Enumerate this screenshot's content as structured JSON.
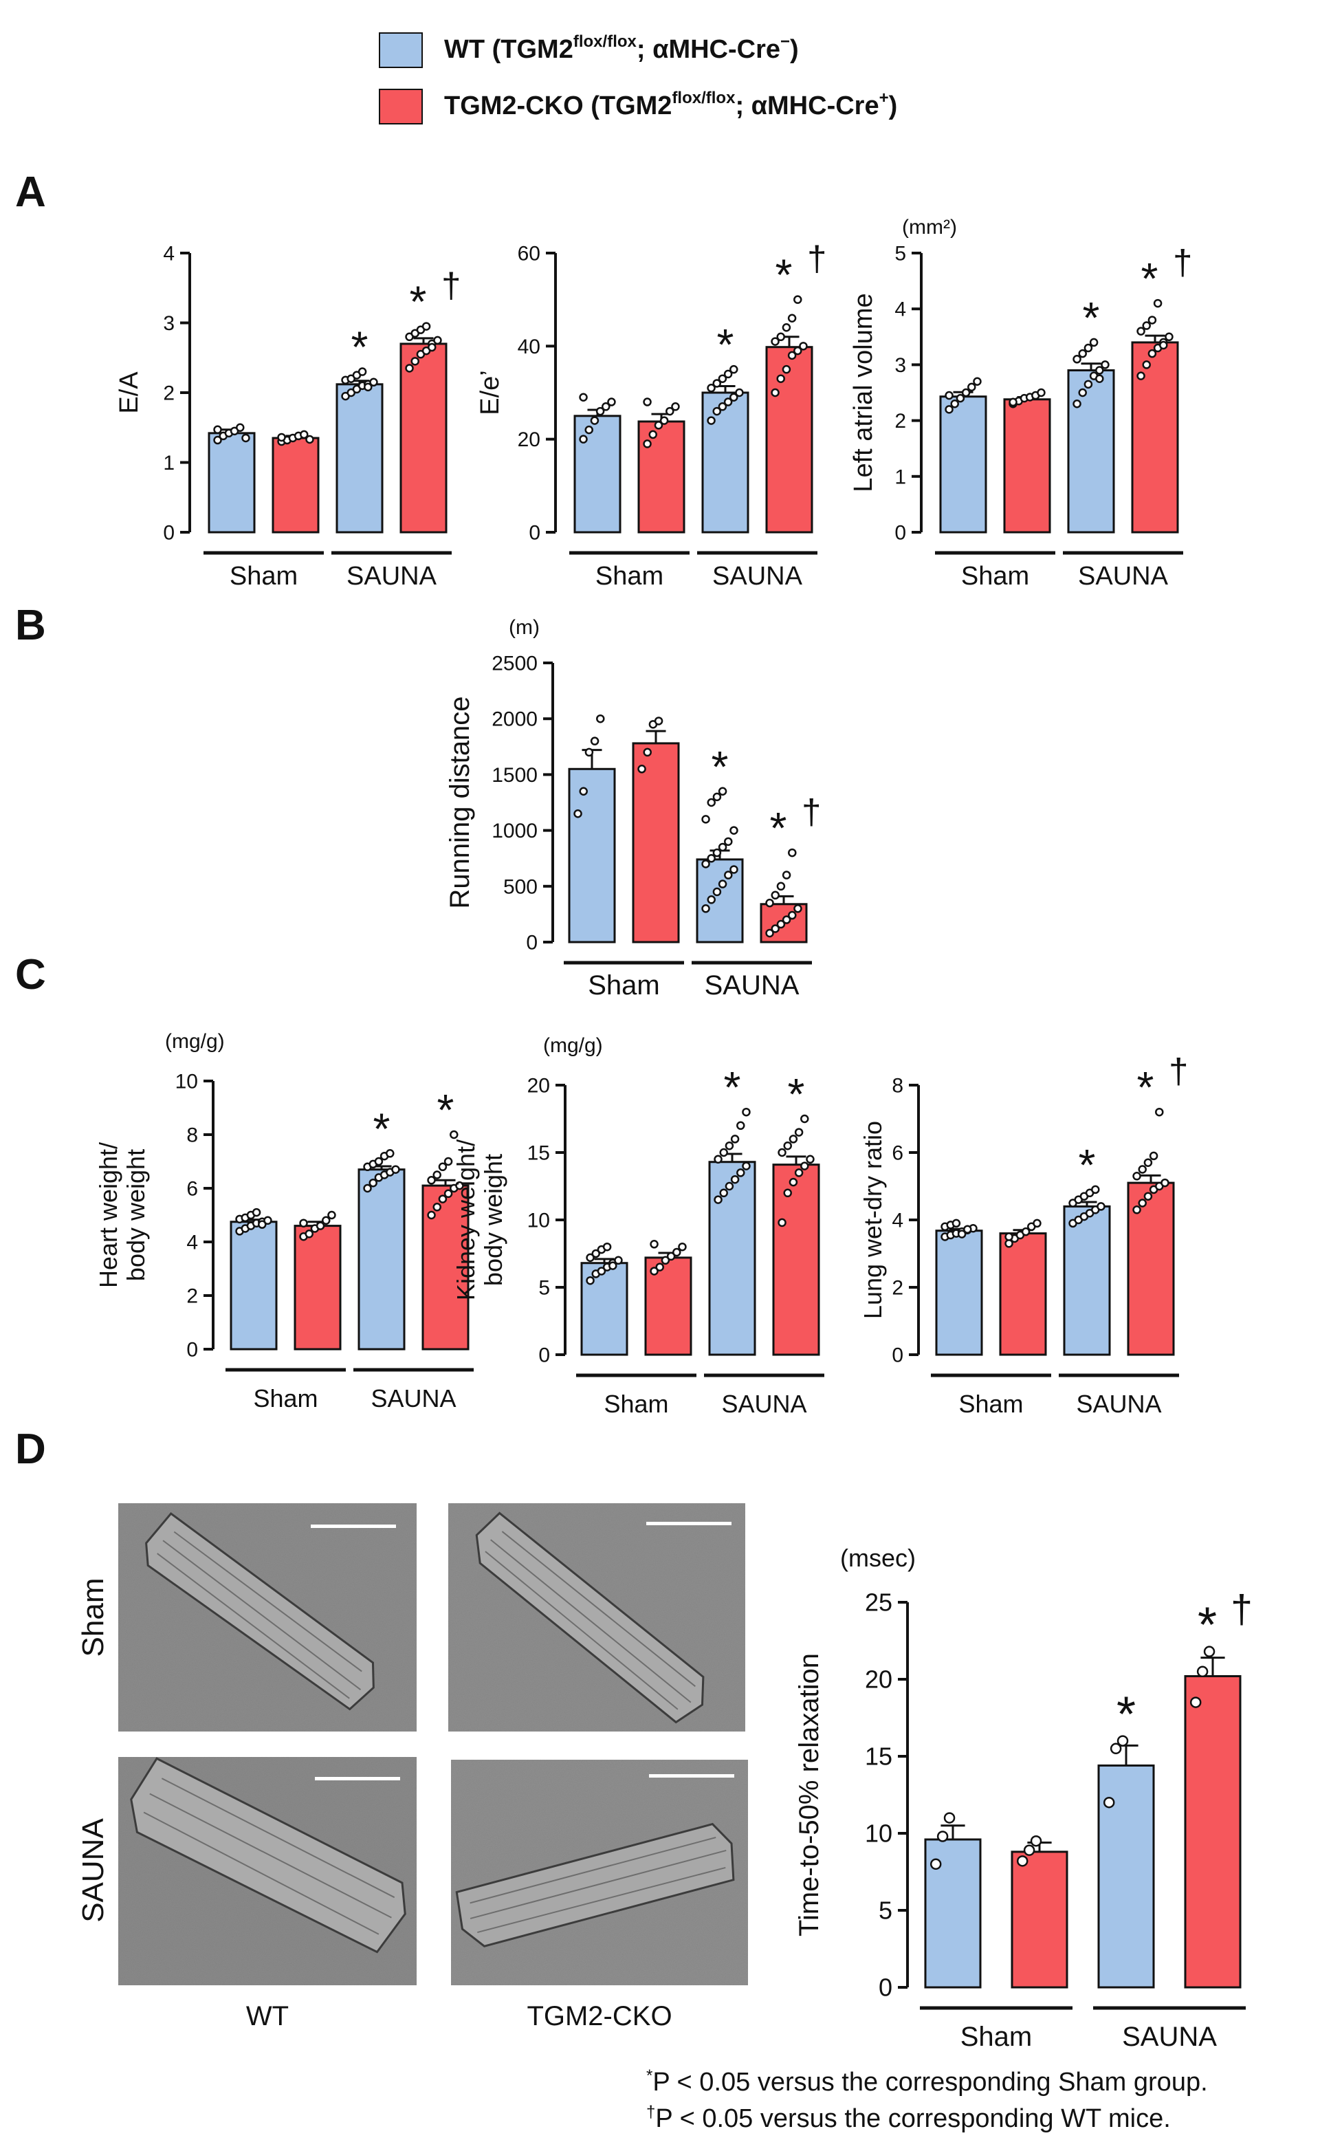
{
  "colors": {
    "wt": "#a4c4e8",
    "cko": "#f6575c",
    "ink": "#111111",
    "micrograph_bg": "#8e8e8e",
    "cell": "#b0b0b0",
    "scalebar": "#ffffff"
  },
  "legend": [
    {
      "series": "wt",
      "label": "WT (TGM2",
      "sup": "flox/flox",
      "label_mid": "; αMHC-Cre",
      "sup2": "−",
      "label_end": ")"
    },
    {
      "series": "cko",
      "label": "TGM2-CKO (TGM2",
      "sup": "flox/flox",
      "label_mid": "; αMHC-Cre",
      "sup2": "+",
      "label_end": ")"
    }
  ],
  "panels": [
    {
      "letter": "A"
    },
    {
      "letter": "B"
    },
    {
      "letter": "C"
    },
    {
      "letter": "D"
    }
  ],
  "chart_data": [
    {
      "id": "a1",
      "panel": "A",
      "type": "bar",
      "title": "",
      "ylabel": [
        "E/A"
      ],
      "unit": "",
      "ylim": [
        0,
        4
      ],
      "yticks": [
        "0",
        "1",
        "2",
        "3",
        "4"
      ],
      "groups": [
        "Sham",
        "SAUNA"
      ],
      "series": [
        "WT",
        "TGM2-CKO"
      ],
      "bars": [
        {
          "series": "WT",
          "group": "Sham",
          "value": 1.42,
          "sem": 0.05,
          "marks": ""
        },
        {
          "series": "TGM2-CKO",
          "group": "Sham",
          "value": 1.35,
          "sem": 0.03,
          "marks": ""
        },
        {
          "series": "WT",
          "group": "SAUNA",
          "value": 2.12,
          "sem": 0.05,
          "marks": "*"
        },
        {
          "series": "TGM2-CKO",
          "group": "SAUNA",
          "value": 2.7,
          "sem": 0.08,
          "marks": "*†"
        }
      ],
      "points": [
        [
          1.32,
          1.38,
          1.42,
          1.45,
          1.5,
          1.35,
          1.47
        ],
        [
          1.3,
          1.32,
          1.35,
          1.38,
          1.4,
          1.33,
          1.36
        ],
        [
          1.95,
          2.0,
          2.05,
          2.1,
          2.12,
          2.15,
          2.18,
          2.2,
          2.25,
          2.3,
          2.08
        ],
        [
          2.35,
          2.45,
          2.55,
          2.6,
          2.7,
          2.75,
          2.8,
          2.85,
          2.9,
          2.95,
          2.65
        ]
      ]
    },
    {
      "id": "a2",
      "panel": "A",
      "type": "bar",
      "title": "",
      "ylabel": [
        "E/e’"
      ],
      "unit": "",
      "ylim": [
        0,
        60
      ],
      "yticks": [
        "0",
        "20",
        "40",
        "60"
      ],
      "groups": [
        "Sham",
        "SAUNA"
      ],
      "series": [
        "WT",
        "TGM2-CKO"
      ],
      "bars": [
        {
          "series": "WT",
          "group": "Sham",
          "value": 25,
          "sem": 1.3,
          "marks": ""
        },
        {
          "series": "TGM2-CKO",
          "group": "Sham",
          "value": 23.8,
          "sem": 1.6,
          "marks": ""
        },
        {
          "series": "WT",
          "group": "SAUNA",
          "value": 30,
          "sem": 1.4,
          "marks": "*"
        },
        {
          "series": "TGM2-CKO",
          "group": "SAUNA",
          "value": 39.8,
          "sem": 2.2,
          "marks": "*†"
        }
      ],
      "points": [
        [
          20,
          22,
          24,
          26,
          27,
          28,
          29
        ],
        [
          19,
          21,
          23,
          24,
          26,
          27,
          28
        ],
        [
          24,
          26,
          27,
          28,
          29,
          30,
          31,
          32,
          33,
          34,
          35
        ],
        [
          30,
          33,
          35,
          38,
          39,
          40,
          41,
          42,
          44,
          46,
          50
        ]
      ]
    },
    {
      "id": "a3",
      "panel": "A",
      "type": "bar",
      "title": "",
      "ylabel": [
        "Left atrial volume"
      ],
      "unit": "(mm²)",
      "ylim": [
        0,
        5
      ],
      "yticks": [
        "0",
        "1",
        "2",
        "3",
        "4",
        "5"
      ],
      "groups": [
        "Sham",
        "SAUNA"
      ],
      "series": [
        "WT",
        "TGM2-CKO"
      ],
      "bars": [
        {
          "series": "WT",
          "group": "Sham",
          "value": 2.43,
          "sem": 0.08,
          "marks": ""
        },
        {
          "series": "TGM2-CKO",
          "group": "Sham",
          "value": 2.38,
          "sem": 0.04,
          "marks": ""
        },
        {
          "series": "WT",
          "group": "SAUNA",
          "value": 2.9,
          "sem": 0.12,
          "marks": "*"
        },
        {
          "series": "TGM2-CKO",
          "group": "SAUNA",
          "value": 3.4,
          "sem": 0.12,
          "marks": "*†"
        }
      ],
      "points": [
        [
          2.2,
          2.3,
          2.4,
          2.5,
          2.6,
          2.7,
          2.45
        ],
        [
          2.3,
          2.35,
          2.4,
          2.42,
          2.45,
          2.5,
          2.33
        ],
        [
          2.3,
          2.5,
          2.65,
          2.8,
          2.9,
          3.0,
          3.1,
          3.2,
          3.3,
          3.4,
          2.75
        ],
        [
          2.8,
          3.0,
          3.2,
          3.3,
          3.4,
          3.5,
          3.6,
          3.7,
          3.8,
          4.1,
          3.35
        ]
      ]
    },
    {
      "id": "b1",
      "panel": "B",
      "type": "bar",
      "title": "",
      "ylabel": [
        "Running distance"
      ],
      "unit": "(m)",
      "ylim": [
        0,
        2500
      ],
      "yticks": [
        "0",
        "500",
        "1000",
        "1500",
        "2000",
        "2500"
      ],
      "groups": [
        "Sham",
        "SAUNA"
      ],
      "series": [
        "WT",
        "TGM2-CKO"
      ],
      "bars": [
        {
          "series": "WT",
          "group": "Sham",
          "value": 1550,
          "sem": 170,
          "marks": ""
        },
        {
          "series": "TGM2-CKO",
          "group": "Sham",
          "value": 1780,
          "sem": 110,
          "marks": ""
        },
        {
          "series": "WT",
          "group": "SAUNA",
          "value": 740,
          "sem": 80,
          "marks": "*"
        },
        {
          "series": "TGM2-CKO",
          "group": "SAUNA",
          "value": 340,
          "sem": 70,
          "marks": "*†"
        }
      ],
      "points": [
        [
          1150,
          1350,
          1700,
          1800,
          2000
        ],
        [
          1550,
          1700,
          1950,
          1980
        ],
        [
          300,
          380,
          450,
          520,
          600,
          650,
          700,
          750,
          800,
          850,
          900,
          1000,
          1100,
          1250,
          1300,
          1350
        ],
        [
          80,
          120,
          160,
          200,
          240,
          300,
          350,
          420,
          500,
          600,
          800
        ]
      ]
    },
    {
      "id": "c1",
      "panel": "C",
      "type": "bar",
      "title": "",
      "ylabel": [
        "Heart weight/",
        "body weight"
      ],
      "unit": "(mg/g)",
      "ylim": [
        0,
        10
      ],
      "yticks": [
        "0",
        "2",
        "4",
        "6",
        "8",
        "10"
      ],
      "groups": [
        "Sham",
        "SAUNA"
      ],
      "series": [
        "WT",
        "TGM2-CKO"
      ],
      "bars": [
        {
          "series": "WT",
          "group": "Sham",
          "value": 4.75,
          "sem": 0.08,
          "marks": ""
        },
        {
          "series": "TGM2-CKO",
          "group": "Sham",
          "value": 4.6,
          "sem": 0.15,
          "marks": ""
        },
        {
          "series": "WT",
          "group": "SAUNA",
          "value": 6.7,
          "sem": 0.12,
          "marks": "*"
        },
        {
          "series": "TGM2-CKO",
          "group": "SAUNA",
          "value": 6.1,
          "sem": 0.2,
          "marks": "*"
        }
      ],
      "points": [
        [
          4.4,
          4.5,
          4.6,
          4.7,
          4.75,
          4.8,
          4.85,
          4.9,
          5.0,
          5.1,
          4.65
        ],
        [
          4.2,
          4.3,
          4.5,
          4.6,
          4.8,
          5.0,
          4.7
        ],
        [
          6.0,
          6.2,
          6.4,
          6.5,
          6.6,
          6.7,
          6.8,
          6.9,
          7.0,
          7.2,
          7.3
        ],
        [
          5.0,
          5.3,
          5.6,
          5.8,
          6.0,
          6.1,
          6.3,
          6.5,
          6.8,
          7.0,
          8.0
        ]
      ]
    },
    {
      "id": "c2",
      "panel": "C",
      "type": "bar",
      "title": "",
      "ylabel": [
        "Kidney weight/",
        "body weight"
      ],
      "unit": "(mg/g)",
      "ylim": [
        0,
        20
      ],
      "yticks": [
        "0",
        "5",
        "10",
        "15",
        "20"
      ],
      "groups": [
        "Sham",
        "SAUNA"
      ],
      "series": [
        "WT",
        "TGM2-CKO"
      ],
      "bars": [
        {
          "series": "WT",
          "group": "Sham",
          "value": 6.8,
          "sem": 0.3,
          "marks": ""
        },
        {
          "series": "TGM2-CKO",
          "group": "Sham",
          "value": 7.2,
          "sem": 0.35,
          "marks": ""
        },
        {
          "series": "WT",
          "group": "SAUNA",
          "value": 14.3,
          "sem": 0.6,
          "marks": "*"
        },
        {
          "series": "TGM2-CKO",
          "group": "SAUNA",
          "value": 14.1,
          "sem": 0.6,
          "marks": "*"
        }
      ],
      "points": [
        [
          5.5,
          6.0,
          6.2,
          6.5,
          6.8,
          7.0,
          7.2,
          7.5,
          7.8,
          8.0,
          6.6
        ],
        [
          6.2,
          6.5,
          7.0,
          7.3,
          7.6,
          8.0,
          8.2
        ],
        [
          11.5,
          12,
          12.5,
          13,
          13.5,
          14,
          14.5,
          15,
          15.5,
          16,
          17,
          18
        ],
        [
          9.8,
          12,
          12.8,
          13.5,
          14,
          14.5,
          15,
          15.5,
          16,
          16.5,
          17.5
        ]
      ]
    },
    {
      "id": "c3",
      "panel": "C",
      "type": "bar",
      "title": "",
      "ylabel": [
        "Lung wet-dry ratio"
      ],
      "unit": "",
      "ylim": [
        0,
        8
      ],
      "yticks": [
        "0",
        "2",
        "4",
        "6",
        "8"
      ],
      "groups": [
        "Sham",
        "SAUNA"
      ],
      "series": [
        "WT",
        "TGM2-CKO"
      ],
      "bars": [
        {
          "series": "WT",
          "group": "Sham",
          "value": 3.68,
          "sem": 0.05,
          "marks": ""
        },
        {
          "series": "TGM2-CKO",
          "group": "Sham",
          "value": 3.6,
          "sem": 0.1,
          "marks": ""
        },
        {
          "series": "WT",
          "group": "SAUNA",
          "value": 4.4,
          "sem": 0.13,
          "marks": "*"
        },
        {
          "series": "TGM2-CKO",
          "group": "SAUNA",
          "value": 5.1,
          "sem": 0.22,
          "marks": "*†"
        }
      ],
      "points": [
        [
          3.5,
          3.55,
          3.6,
          3.65,
          3.7,
          3.75,
          3.8,
          3.85,
          3.9,
          3.58,
          3.72
        ],
        [
          3.3,
          3.45,
          3.55,
          3.65,
          3.8,
          3.9,
          3.5
        ],
        [
          3.9,
          4.0,
          4.1,
          4.2,
          4.3,
          4.4,
          4.5,
          4.6,
          4.7,
          4.8,
          4.9
        ],
        [
          4.3,
          4.5,
          4.7,
          4.9,
          5.0,
          5.1,
          5.3,
          5.5,
          5.7,
          5.9,
          7.2
        ]
      ]
    },
    {
      "id": "d1",
      "panel": "D",
      "type": "bar",
      "title": "",
      "ylabel": [
        "Time-to-50% relaxation"
      ],
      "unit": "(msec)",
      "ylim": [
        0,
        25
      ],
      "yticks": [
        "0",
        "5",
        "10",
        "15",
        "20",
        "25"
      ],
      "groups": [
        "Sham",
        "SAUNA"
      ],
      "series": [
        "WT",
        "TGM2-CKO"
      ],
      "bars": [
        {
          "series": "WT",
          "group": "Sham",
          "value": 9.6,
          "sem": 0.9,
          "marks": ""
        },
        {
          "series": "TGM2-CKO",
          "group": "Sham",
          "value": 8.8,
          "sem": 0.6,
          "marks": ""
        },
        {
          "series": "WT",
          "group": "SAUNA",
          "value": 14.4,
          "sem": 1.3,
          "marks": "*"
        },
        {
          "series": "TGM2-CKO",
          "group": "SAUNA",
          "value": 20.2,
          "sem": 1.2,
          "marks": "*†"
        }
      ],
      "points": [
        [
          8.0,
          9.8,
          11.0
        ],
        [
          8.2,
          8.9,
          9.5
        ],
        [
          12.0,
          15.5,
          16.0
        ],
        [
          18.5,
          20.5,
          21.8
        ]
      ]
    }
  ],
  "micrographs": {
    "row_labels": [
      "Sham",
      "SAUNA"
    ],
    "col_labels": [
      "WT",
      "TGM2-CKO"
    ]
  },
  "footnotes": [
    {
      "mark": "*",
      "text": "P < 0.05 versus the corresponding Sham group."
    },
    {
      "mark": "†",
      "text": "P < 0.05 versus the corresponding WT mice."
    }
  ]
}
